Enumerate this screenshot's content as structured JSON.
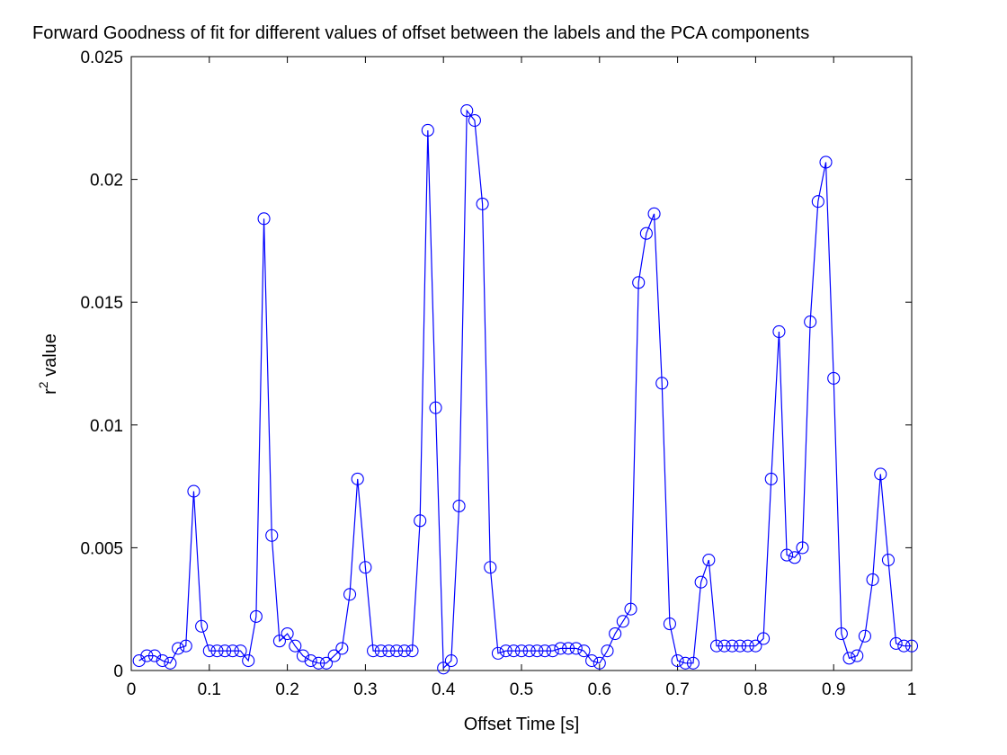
{
  "chart_data": {
    "type": "line",
    "title": "Forward Goodness of fit for different values of offset between the labels and the PCA components",
    "xlabel": "Offset Time [s]",
    "ylabel_base": "r",
    "ylabel_sup": "2",
    "ylabel_rest": " value",
    "xlim": [
      0,
      1
    ],
    "ylim": [
      0,
      0.025
    ],
    "x_ticks": [
      0,
      0.1,
      0.2,
      0.3,
      0.4,
      0.5,
      0.6,
      0.7,
      0.8,
      0.9,
      1
    ],
    "x_tick_labels": [
      "0",
      "0.1",
      "0.2",
      "0.3",
      "0.4",
      "0.5",
      "0.6",
      "0.7",
      "0.8",
      "0.9",
      "1"
    ],
    "y_ticks": [
      0,
      0.005,
      0.01,
      0.015,
      0.02,
      0.025
    ],
    "y_tick_labels": [
      "0",
      "0.005",
      "0.01",
      "0.015",
      "0.02",
      "0.025"
    ],
    "grid": false,
    "marker": "circle",
    "line_color": "#0000ff",
    "series": [
      {
        "x": [
          0.01,
          0.02,
          0.03,
          0.04,
          0.05,
          0.06,
          0.07,
          0.08,
          0.09,
          0.1,
          0.11,
          0.12,
          0.13,
          0.14,
          0.15,
          0.16,
          0.17,
          0.18,
          0.19,
          0.2,
          0.21,
          0.22,
          0.23,
          0.24,
          0.25,
          0.26,
          0.27,
          0.28,
          0.29,
          0.3,
          0.31,
          0.32,
          0.33,
          0.34,
          0.35,
          0.36,
          0.37,
          0.38,
          0.39,
          0.4,
          0.41,
          0.42,
          0.43,
          0.44,
          0.45,
          0.46,
          0.47,
          0.48,
          0.49,
          0.5,
          0.51,
          0.52,
          0.53,
          0.54,
          0.55,
          0.56,
          0.57,
          0.58,
          0.59,
          0.6,
          0.61,
          0.62,
          0.63,
          0.64,
          0.65,
          0.66,
          0.67,
          0.68,
          0.69,
          0.7,
          0.71,
          0.72,
          0.73,
          0.74,
          0.75,
          0.76,
          0.77,
          0.78,
          0.79,
          0.8,
          0.81,
          0.82,
          0.83,
          0.84,
          0.85,
          0.86,
          0.87,
          0.88,
          0.89,
          0.9,
          0.91,
          0.92,
          0.93,
          0.94,
          0.95,
          0.96,
          0.97,
          0.98,
          0.99,
          1.0
        ],
        "y": [
          0.0004,
          0.0006,
          0.0006,
          0.0004,
          0.0003,
          0.0009,
          0.001,
          0.0073,
          0.0018,
          0.0008,
          0.0008,
          0.0008,
          0.0008,
          0.0008,
          0.0004,
          0.0022,
          0.0184,
          0.0055,
          0.0012,
          0.0015,
          0.001,
          0.0006,
          0.0004,
          0.0003,
          0.0003,
          0.0006,
          0.0009,
          0.0031,
          0.0078,
          0.0042,
          0.0008,
          0.0008,
          0.0008,
          0.0008,
          0.0008,
          0.0008,
          0.0061,
          0.022,
          0.0107,
          0.0001,
          0.0004,
          0.0067,
          0.0228,
          0.0224,
          0.019,
          0.0042,
          0.0007,
          0.0008,
          0.0008,
          0.0008,
          0.0008,
          0.0008,
          0.0008,
          0.0008,
          0.0009,
          0.0009,
          0.0009,
          0.0008,
          0.0004,
          0.0003,
          0.0008,
          0.0015,
          0.002,
          0.0025,
          0.0158,
          0.0178,
          0.0186,
          0.0117,
          0.0019,
          0.0004,
          0.0003,
          0.0003,
          0.0036,
          0.0045,
          0.001,
          0.001,
          0.001,
          0.001,
          0.001,
          0.001,
          0.0013,
          0.0078,
          0.0138,
          0.0047,
          0.0046,
          0.005,
          0.0142,
          0.0191,
          0.0207,
          0.0119,
          0.0015,
          0.0005,
          0.0006,
          0.0014,
          0.0037,
          0.008,
          0.0045,
          0.0011,
          0.001,
          0.001
        ]
      }
    ]
  }
}
